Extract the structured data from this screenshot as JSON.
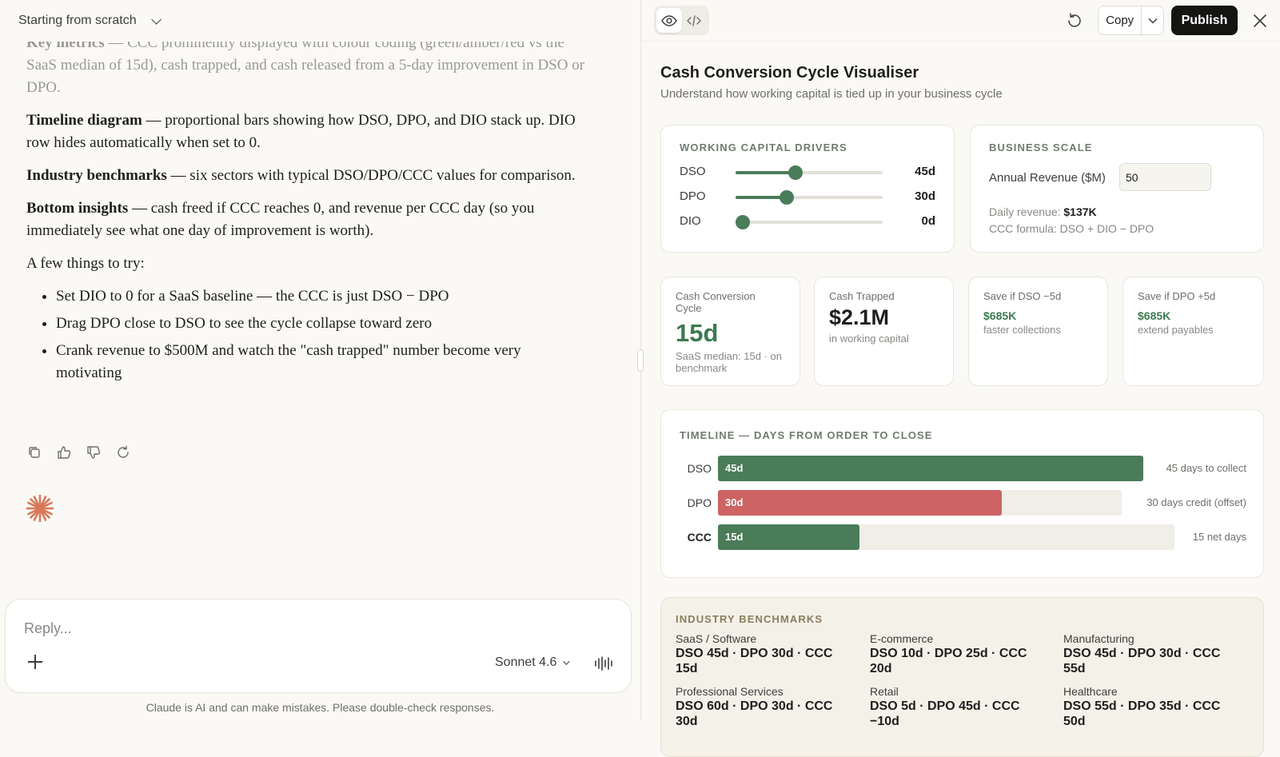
{
  "chat": {
    "title": "Starting from scratch",
    "p1_bold": "Key metrics",
    "p1_text": " — CCC prominently displayed with colour coding (green/amber/red vs the SaaS median of 15d), cash trapped, and cash released from a 5-day improvement in DSO or DPO.",
    "p2_bold": "Timeline diagram",
    "p2_text": " — proportional bars showing how DSO, DPO, and DIO stack up. DIO row hides automatically when set to 0.",
    "p3_bold": "Industry benchmarks",
    "p3_text": " — six sectors with typical DSO/DPO/CCC values for comparison.",
    "p4_bold": "Bottom insights",
    "p4_text": " — cash freed if CCC reaches 0, and revenue per CCC day (so you immediately see what one day of improvement is worth).",
    "p5": "A few things to try:",
    "tips": [
      "Set DIO to 0 for a SaaS baseline — the CCC is just DSO − DPO",
      "Drag DPO close to DSO to see the cycle collapse toward zero",
      "Crank revenue to $500M and watch the \"cash trapped\" number become very motivating"
    ],
    "reply_placeholder": "Reply...",
    "model": "Sonnet 4.6",
    "disclaimer": "Claude is AI and can make mistakes. Please double-check responses."
  },
  "toolbar": {
    "copy_label": "Copy",
    "publish_label": "Publish"
  },
  "app": {
    "title": "Cash Conversion Cycle Visualiser",
    "subtitle": "Understand how working capital is tied up in your business cycle",
    "drivers": {
      "label": "WORKING CAPITAL DRIVERS",
      "rows": [
        {
          "name": "DSO",
          "value": "45d",
          "level": 0.41
        },
        {
          "name": "DPO",
          "value": "30d",
          "level": 0.35
        },
        {
          "name": "DIO",
          "value": "0d",
          "level": 0.0
        }
      ]
    },
    "scale": {
      "label": "BUSINESS SCALE",
      "revenue_label": "Annual Revenue ($M)",
      "revenue_value": "50",
      "daily_label": "Daily revenue: ",
      "daily_value": "$137K",
      "formula": "CCC formula: DSO + DIO − DPO"
    },
    "kpis": {
      "ccc_title": "Cash Conversion Cycle",
      "ccc_value": "15d",
      "ccc_sub": "SaaS median: 15d · on benchmark",
      "trapped_title": "Cash Trapped",
      "trapped_value": "$2.1M",
      "trapped_sub": "in working capital",
      "dso_title": "Save if DSO −5d",
      "dso_value": "$685K",
      "dso_sub": "faster collections",
      "dpo_title": "Save if DPO +5d",
      "dpo_value": "$685K",
      "dpo_sub": "extend payables"
    },
    "timeline": {
      "label": "TIMELINE — DAYS FROM ORDER TO CLOSE",
      "rows": [
        {
          "name": "DSO",
          "bar_label": "45d",
          "days": 45,
          "note": "45 days to collect"
        },
        {
          "name": "DPO",
          "bar_label": "30d",
          "days": 30,
          "note": "30 days credit (offset)"
        },
        {
          "name": "CCC",
          "bar_label": "15d",
          "days": 15,
          "note": "15 net days"
        }
      ]
    },
    "benchmarks": {
      "label": "INDUSTRY BENCHMARKS",
      "items": [
        {
          "name": "SaaS / Software",
          "values": "DSO 45d · DPO 30d · CCC 15d"
        },
        {
          "name": "E-commerce",
          "values": "DSO 10d · DPO 25d · CCC 20d"
        },
        {
          "name": "Manufacturing",
          "values": "DSO 45d · DPO 30d · CCC 55d"
        },
        {
          "name": "Professional Services",
          "values": "DSO 60d · DPO 30d · CCC 30d"
        },
        {
          "name": "Retail",
          "values": "DSO 5d · DPO 45d · CCC −10d"
        },
        {
          "name": "Healthcare",
          "values": "DSO 55d · DPO 35d · CCC 50d"
        }
      ]
    }
  },
  "colors": {
    "accent_green": "#4a7c59",
    "accent_red": "#cd6363",
    "publish_bg": "#141413",
    "spark": "#d97757"
  },
  "icons": {
    "view": "eye-icon",
    "code": "code-icon",
    "refresh": "refresh-icon",
    "close": "close-icon",
    "copy": "copy-icon",
    "thumbs_up": "thumbs-up-icon",
    "thumbs_down": "thumbs-down-icon",
    "retry": "retry-icon",
    "voice": "voice-icon",
    "spark": "claude-spark-icon"
  }
}
